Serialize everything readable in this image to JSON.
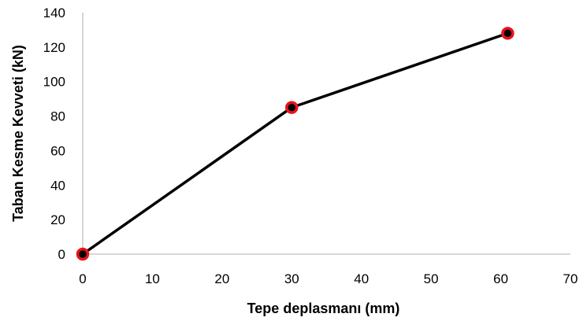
{
  "chart_data": {
    "type": "line",
    "xlabel": "Tepe deplasmanı (mm)",
    "ylabel": "Taban Kesme Kevveti (kN)",
    "xlim": [
      0,
      70
    ],
    "ylim": [
      0,
      140
    ],
    "xticks": [
      0,
      10,
      20,
      30,
      40,
      50,
      60,
      70
    ],
    "yticks": [
      0,
      20,
      40,
      60,
      80,
      100,
      120,
      140
    ],
    "grid": false,
    "legend": "none",
    "series": [
      {
        "x": [
          0,
          30,
          61
        ],
        "y": [
          0,
          85,
          128
        ],
        "line_color": "#000000",
        "marker_fill": "#000000",
        "marker_edge": "#e8141a"
      }
    ]
  },
  "colors": {
    "axis": "#bfbfbf",
    "line": "#000000",
    "marker_edge": "#e8141a"
  }
}
